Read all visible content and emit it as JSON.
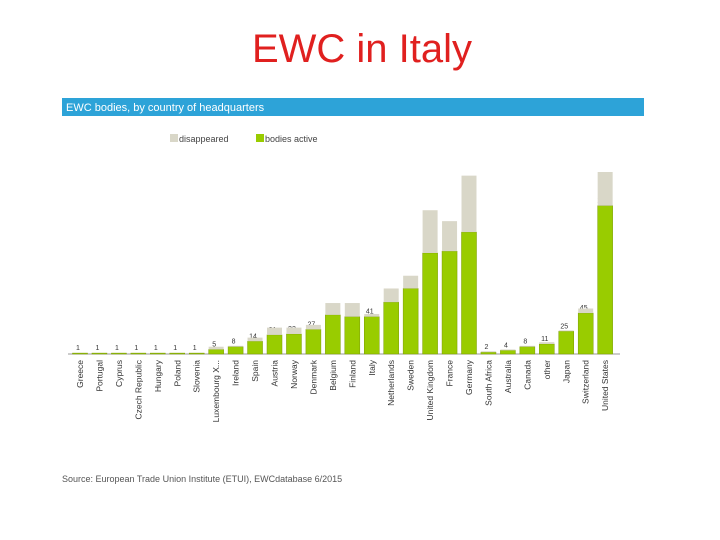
{
  "slide_title": "EWC in Italy",
  "chart_data": {
    "type": "stacked_bar",
    "title": "EWC bodies, by country of headquarters",
    "categories": [
      "Greece",
      "Portugal",
      "Cyprus",
      "Czech Republic",
      "Hungary",
      "Poland",
      "Slovenia",
      "Luxembourg X...",
      "Ireland",
      "Spain",
      "Austria",
      "Norway",
      "Denmark",
      "Belgium",
      "Finland",
      "Italy",
      "Netherlands",
      "Sweden",
      "United Kingdom",
      "France",
      "Germany",
      "South Africa",
      "Australia",
      "Canada",
      "other",
      "Japan",
      "Switzerland",
      "United States"
    ],
    "series": [
      {
        "name": "bodies active",
        "color": "#99cc00",
        "values": [
          1,
          1,
          1,
          1,
          1,
          1,
          1,
          5,
          8,
          14,
          21,
          22,
          27,
          43,
          41,
          41,
          57,
          72,
          111,
          113,
          134,
          2,
          4,
          8,
          11,
          25,
          45,
          163
        ]
      },
      {
        "name": "disappeared",
        "color": "#d9d7c8",
        "values": [
          0,
          0,
          0,
          0,
          0,
          0,
          0,
          3,
          1,
          4,
          8,
          7,
          5,
          13,
          15,
          3,
          15,
          14,
          47,
          33,
          62,
          1,
          1,
          1,
          2,
          1,
          5,
          37
        ]
      }
    ],
    "legend": "top",
    "source": "Source: European Trade Union Institute (ETUI), EWCdatabase 6/2015"
  }
}
